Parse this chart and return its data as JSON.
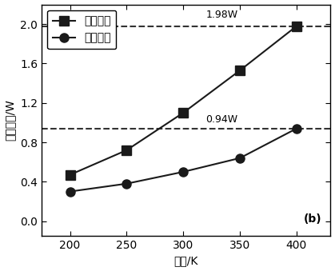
{
  "x": [
    200,
    250,
    300,
    350,
    400
  ],
  "optimized": [
    0.47,
    0.72,
    1.1,
    1.53,
    1.98
  ],
  "basic": [
    0.3,
    0.38,
    0.5,
    0.64,
    0.94
  ],
  "dashed_line_1": 1.98,
  "dashed_line_2": 0.94,
  "annotation_1": "1.98W",
  "annotation_2": "0.94W",
  "annotation_b": "(b)",
  "legend_optimized": "优化模块",
  "legend_basic": "基础模块",
  "xlabel": "温度/K",
  "ylabel": "输出功率/W",
  "xlim": [
    175,
    430
  ],
  "ylim": [
    -0.15,
    2.2
  ],
  "xticks": [
    200,
    250,
    300,
    350,
    400
  ],
  "yticks": [
    0.0,
    0.4,
    0.8,
    1.2,
    1.6,
    2.0
  ],
  "line_color": "#1a1a1a",
  "marker_square": "s",
  "marker_circle": "o",
  "markersize": 8,
  "linewidth": 1.5,
  "dashed_linewidth": 1.5,
  "dashed_color": "#333333",
  "font_size_labels": 10,
  "font_size_ticks": 10,
  "font_size_legend": 10,
  "font_size_annot": 9,
  "font_size_b": 10
}
